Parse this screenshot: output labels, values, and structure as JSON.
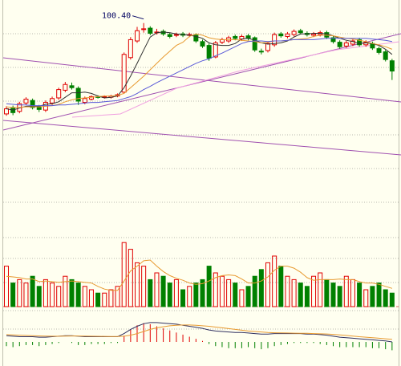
{
  "chart_data": [
    {
      "type": "candlestick",
      "ylim": [
        67,
        104
      ],
      "up_color": "#e00000",
      "down_color": "#008000",
      "high_label": "100.40",
      "label_color": "#000060",
      "open": [
        86.2,
        87.1,
        86.6,
        87.9,
        88.3,
        87.3,
        86.8,
        87.9,
        88.7,
        89.9,
        90.6,
        90.2,
        88.0,
        88.5,
        88.9,
        88.8,
        88.8,
        89.0,
        89.6,
        95.0,
        97.6,
        99.4,
        99.6,
        98.9,
        99.1,
        98.6,
        98.5,
        98.7,
        98.5,
        98.5,
        97.5,
        96.9,
        95.1,
        97.4,
        97.6,
        98.3,
        97.9,
        98.4,
        98.1,
        96.0,
        96.1,
        97.0,
        98.7,
        98.3,
        98.6,
        99.2,
        98.8,
        98.5,
        98.6,
        98.9,
        98.1,
        97.4,
        96.8,
        97.1,
        97.8,
        97.0,
        97.2,
        96.4,
        95.9,
        94.5
      ],
      "high": [
        87.4,
        87.5,
        88.1,
        88.8,
        88.6,
        87.6,
        88.3,
        88.9,
        90.3,
        91.2,
        91.1,
        90.5,
        88.9,
        89.1,
        89.1,
        89.1,
        89.2,
        89.4,
        95.8,
        98.2,
        99.8,
        100.4,
        99.9,
        99.5,
        99.4,
        98.9,
        98.9,
        99.0,
        98.9,
        98.8,
        97.8,
        97.2,
        97.6,
        98.1,
        98.4,
        98.6,
        98.6,
        98.7,
        98.3,
        96.4,
        97.5,
        98.9,
        99.0,
        99.0,
        99.4,
        99.5,
        99.1,
        99.0,
        99.2,
        99.2,
        98.4,
        97.7,
        97.6,
        97.9,
        98.1,
        97.7,
        97.5,
        96.7,
        96.2,
        94.8
      ],
      "low": [
        85.9,
        86.0,
        86.3,
        87.6,
        86.9,
        86.5,
        86.5,
        87.6,
        88.4,
        89.6,
        90.0,
        87.6,
        87.7,
        88.3,
        88.6,
        88.6,
        88.6,
        88.8,
        89.4,
        94.7,
        97.3,
        98.9,
        98.5,
        98.6,
        98.4,
        98.0,
        98.2,
        98.2,
        98.2,
        97.3,
        96.5,
        94.5,
        94.9,
        97.1,
        97.3,
        97.7,
        97.6,
        97.7,
        95.9,
        95.5,
        95.8,
        96.7,
        98.1,
        98.0,
        98.3,
        98.6,
        98.3,
        98.2,
        98.3,
        97.9,
        97.2,
        96.4,
        96.5,
        96.8,
        96.7,
        96.7,
        96.2,
        95.5,
        94.4,
        91.5
      ],
      "close": [
        87.0,
        86.4,
        87.8,
        88.5,
        87.2,
        86.9,
        88.0,
        88.6,
        90.0,
        90.8,
        90.3,
        88.2,
        88.6,
        88.9,
        88.8,
        88.9,
        89.0,
        89.2,
        95.5,
        97.8,
        99.2,
        99.5,
        98.8,
        99.0,
        98.7,
        98.3,
        98.6,
        98.5,
        98.6,
        97.6,
        96.8,
        94.9,
        97.3,
        97.8,
        98.1,
        98.0,
        98.3,
        98.0,
        96.2,
        95.9,
        97.2,
        98.6,
        98.4,
        98.7,
        99.1,
        98.9,
        98.6,
        98.7,
        98.9,
        98.2,
        97.5,
        96.7,
        97.3,
        97.6,
        97.0,
        97.4,
        96.5,
        95.8,
        94.7,
        92.9
      ],
      "lines": [
        {
          "color": "#303030",
          "values": [
            87.0,
            86.8,
            87.1,
            87.4,
            87.4,
            87.4,
            87.7,
            87.8,
            88.1,
            88.8,
            89.5,
            89.5,
            89.6,
            89.4,
            89.0,
            88.7,
            88.8,
            89.0,
            90.3,
            92.1,
            94.1,
            96.2,
            98.2,
            98.9,
            99.0,
            98.9,
            98.7,
            98.6,
            98.5,
            98.3,
            98.0,
            97.3,
            97.0,
            96.9,
            96.9,
            97.2,
            97.9,
            98.0,
            97.7,
            97.3,
            97.1,
            97.2,
            97.3,
            97.6,
            98.2,
            98.7,
            98.7,
            98.8,
            98.8,
            98.7,
            98.4,
            98.0,
            97.7,
            97.5,
            97.2,
            97.3,
            97.2,
            96.9,
            96.3,
            95.5
          ]
        },
        {
          "color": "#e89a30",
          "values": [
            87.3,
            87.2,
            87.2,
            87.3,
            87.3,
            87.3,
            87.4,
            87.5,
            87.7,
            88.1,
            88.4,
            88.6,
            88.7,
            88.8,
            88.9,
            89.0,
            89.0,
            89.1,
            89.4,
            90.3,
            91.2,
            92.1,
            93.1,
            94.1,
            95.1,
            96.0,
            96.9,
            97.4,
            98.3,
            98.7,
            98.5,
            98.1,
            97.9,
            97.8,
            97.8,
            97.8,
            97.7,
            97.6,
            97.5,
            97.3,
            97.4,
            97.6,
            97.6,
            97.7,
            97.8,
            97.9,
            98.0,
            98.3,
            98.5,
            98.5,
            98.4,
            98.2,
            98.0,
            97.9,
            97.7,
            97.5,
            97.2,
            97.0,
            96.7,
            96.3
          ]
        },
        {
          "color": "#5a5ad8",
          "values": [
            87.8,
            87.7,
            87.6,
            87.6,
            87.5,
            87.5,
            87.5,
            87.5,
            87.6,
            87.6,
            87.7,
            87.8,
            87.9,
            88.0,
            88.0,
            88.1,
            88.2,
            88.3,
            88.6,
            88.9,
            89.4,
            90.0,
            90.5,
            91.1,
            91.6,
            92.1,
            92.6,
            93.1,
            93.6,
            94.1,
            94.5,
            94.8,
            95.3,
            95.7,
            96.2,
            96.7,
            97.2,
            97.5,
            97.6,
            97.6,
            97.5,
            97.6,
            97.6,
            97.7,
            97.8,
            97.8,
            97.8,
            97.8,
            97.9,
            98.0,
            98.0,
            98.0,
            98.0,
            98.0,
            98.0,
            98.0,
            97.9,
            97.8,
            97.7,
            97.5
          ]
        }
      ]
    },
    {
      "type": "volume",
      "ylim": [
        0,
        100
      ],
      "values": [
        60,
        35,
        40,
        35,
        45,
        30,
        40,
        35,
        30,
        45,
        40,
        35,
        30,
        25,
        20,
        20,
        25,
        30,
        95,
        85,
        65,
        60,
        40,
        50,
        45,
        35,
        40,
        25,
        30,
        35,
        40,
        60,
        50,
        45,
        40,
        35,
        25,
        30,
        45,
        55,
        65,
        75,
        60,
        45,
        40,
        35,
        30,
        45,
        50,
        40,
        35,
        30,
        45,
        40,
        35,
        25,
        30,
        35,
        25,
        20
      ],
      "lines": [
        {
          "color": "#e89a30",
          "values": [
            45,
            44,
            43,
            41,
            41,
            37,
            38,
            37,
            36,
            37,
            38,
            37,
            36,
            35,
            30,
            26,
            24,
            24,
            38,
            53,
            60,
            68,
            69,
            60,
            52,
            46,
            42,
            39,
            35,
            33,
            34,
            38,
            43,
            46,
            47,
            46,
            41,
            35,
            35,
            38,
            44,
            54,
            60,
            60,
            57,
            51,
            43,
            39,
            40,
            40,
            40,
            41,
            40,
            40,
            37,
            35,
            35,
            33,
            30,
            27
          ]
        }
      ]
    },
    {
      "type": "macd",
      "ylim": [
        -2,
        3
      ],
      "up_color": "#e00000",
      "down_color": "#008000",
      "values": [
        -0.4,
        -0.5,
        -0.4,
        -0.3,
        -0.3,
        -0.4,
        -0.3,
        -0.2,
        -0.1,
        0.0,
        -0.1,
        -0.3,
        -0.3,
        -0.2,
        -0.2,
        -0.2,
        -0.1,
        -0.1,
        0.6,
        1.2,
        1.6,
        1.8,
        1.7,
        1.5,
        1.3,
        1.1,
        0.9,
        0.7,
        0.5,
        0.3,
        0.1,
        -0.2,
        -0.4,
        -0.5,
        -0.6,
        -0.6,
        -0.6,
        -0.5,
        -0.6,
        -0.7,
        -0.6,
        -0.4,
        -0.3,
        -0.2,
        -0.1,
        -0.1,
        -0.1,
        -0.1,
        -0.2,
        -0.3,
        -0.4,
        -0.5,
        -0.5,
        -0.5,
        -0.5,
        -0.5,
        -0.6,
        -0.6,
        -0.7,
        -0.8
      ],
      "lines": [
        {
          "color": "#303060",
          "values": [
            0.6,
            0.55,
            0.5,
            0.5,
            0.5,
            0.45,
            0.45,
            0.5,
            0.55,
            0.6,
            0.6,
            0.55,
            0.5,
            0.5,
            0.5,
            0.5,
            0.5,
            0.5,
            0.8,
            1.2,
            1.5,
            1.75,
            1.85,
            1.85,
            1.8,
            1.75,
            1.7,
            1.6,
            1.5,
            1.4,
            1.3,
            1.15,
            1.05,
            1.0,
            0.95,
            0.9,
            0.9,
            0.85,
            0.8,
            0.75,
            0.75,
            0.8,
            0.8,
            0.8,
            0.8,
            0.8,
            0.75,
            0.75,
            0.7,
            0.65,
            0.55,
            0.45,
            0.4,
            0.35,
            0.3,
            0.25,
            0.2,
            0.15,
            0.1,
            0.0
          ]
        },
        {
          "color": "#e89a30",
          "values": [
            0.7,
            0.68,
            0.65,
            0.62,
            0.6,
            0.58,
            0.56,
            0.55,
            0.55,
            0.56,
            0.57,
            0.57,
            0.56,
            0.55,
            0.54,
            0.53,
            0.52,
            0.52,
            0.55,
            0.65,
            0.8,
            1.0,
            1.2,
            1.35,
            1.45,
            1.55,
            1.6,
            1.62,
            1.62,
            1.6,
            1.55,
            1.5,
            1.42,
            1.35,
            1.28,
            1.2,
            1.12,
            1.05,
            1.0,
            0.95,
            0.9,
            0.88,
            0.86,
            0.85,
            0.84,
            0.83,
            0.82,
            0.8,
            0.78,
            0.76,
            0.72,
            0.68,
            0.62,
            0.56,
            0.5,
            0.45,
            0.4,
            0.35,
            0.3,
            0.25
          ]
        }
      ]
    }
  ]
}
